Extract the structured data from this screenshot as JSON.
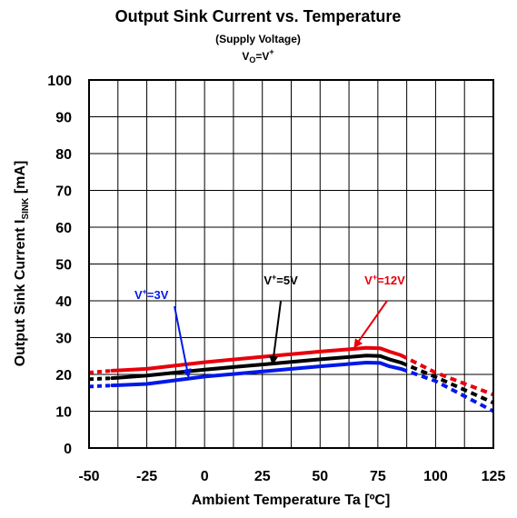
{
  "chart_data": {
    "type": "line",
    "title": "Output Sink Current vs. Temperature",
    "subtitle": "(Supply Voltage)",
    "condition": {
      "base": "V",
      "sub": "O",
      "mid": "=V",
      "sup": "+"
    },
    "xlabel": "Ambient Temperature Ta [ºC]",
    "ylabel": {
      "main": "Output Sink Current I",
      "sub": "SINK",
      "tail": " [mA]"
    },
    "xlim": [
      -50,
      125
    ],
    "ylim": [
      0,
      100
    ],
    "x_ticks": [
      "-50",
      "-25",
      "0",
      "25",
      "50",
      "75",
      "100",
      "125"
    ],
    "y_ticks": [
      "0",
      "10",
      "20",
      "30",
      "40",
      "50",
      "60",
      "70",
      "80",
      "90",
      "100"
    ],
    "grid": true,
    "series": [
      {
        "label_base": "V",
        "label_sup": "+",
        "label_tail": "=12V",
        "color": "#e8000b",
        "solid": [
          [
            -40,
            21
          ],
          [
            -25,
            21.5
          ],
          [
            0,
            23.3
          ],
          [
            25,
            24.8
          ],
          [
            50,
            26.2
          ],
          [
            70,
            27.2
          ],
          [
            76,
            27.1
          ],
          [
            80,
            26.2
          ],
          [
            85,
            25.2
          ]
        ],
        "dashed": [
          [
            -50,
            20.5
          ],
          [
            -40,
            21
          ]
        ],
        "dashed_end": [
          [
            85,
            25.2
          ],
          [
            100,
            20.5
          ],
          [
            125,
            14.5
          ]
        ],
        "annotation": {
          "text_x": 78,
          "text_y": 44.5,
          "arrow_from": [
            79,
            40
          ],
          "arrow_to": [
            65,
            27.5
          ]
        }
      },
      {
        "label_base": "V",
        "label_sup": "+",
        "label_tail": "=5V",
        "color": "#000000",
        "solid": [
          [
            -40,
            19
          ],
          [
            -25,
            19.7
          ],
          [
            0,
            21.3
          ],
          [
            25,
            22.7
          ],
          [
            50,
            24.1
          ],
          [
            70,
            25.1
          ],
          [
            76,
            25
          ],
          [
            80,
            24.1
          ],
          [
            85,
            23.2
          ]
        ],
        "dashed": [
          [
            -50,
            18.7
          ],
          [
            -40,
            19
          ]
        ],
        "dashed_end": [
          [
            85,
            23.2
          ],
          [
            100,
            19.3
          ],
          [
            125,
            12.3
          ]
        ],
        "annotation": {
          "text_x": 33,
          "text_y": 44.5,
          "arrow_from": [
            33,
            40
          ],
          "arrow_to": [
            29.5,
            23
          ]
        }
      },
      {
        "label_base": "V",
        "label_sup": "+",
        "label_tail": "=3V",
        "color": "#0018e8",
        "solid": [
          [
            -40,
            17
          ],
          [
            -25,
            17.4
          ],
          [
            0,
            19.4
          ],
          [
            25,
            20.8
          ],
          [
            50,
            22.2
          ],
          [
            70,
            23.2
          ],
          [
            76,
            23.1
          ],
          [
            80,
            22.2
          ],
          [
            85,
            21.5
          ]
        ],
        "dashed": [
          [
            -50,
            16.7
          ],
          [
            -40,
            17
          ]
        ],
        "dashed_end": [
          [
            85,
            21.5
          ],
          [
            100,
            18.2
          ],
          [
            125,
            10
          ]
        ],
        "annotation": {
          "text_x": -23,
          "text_y": 40.5,
          "arrow_from": [
            -13,
            38.5
          ],
          "arrow_to": [
            -7,
            19.5
          ]
        }
      }
    ]
  }
}
